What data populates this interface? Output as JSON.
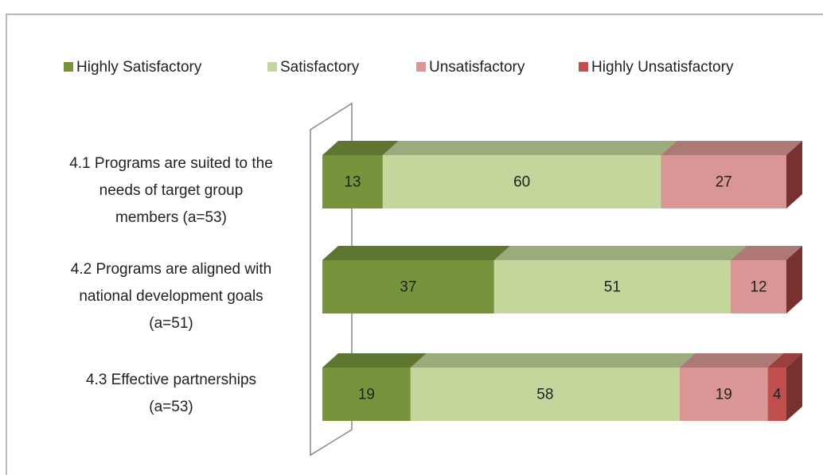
{
  "chart_data": {
    "type": "bar",
    "orientation": "horizontal",
    "stacked": true,
    "legend": "top",
    "categories": [
      "4.1 Programs are suited to the\nneeds of target group\nmembers (a=53)",
      "4.2 Programs are aligned with\nnational development goals\n(a=51)",
      "4.3 Effective partnerships\n(a=53)"
    ],
    "series": [
      {
        "name": "Highly Satisfactory",
        "color": "#77933c",
        "values": [
          13,
          37,
          19
        ]
      },
      {
        "name": "Satisfactory",
        "color": "#c3d69b",
        "values": [
          60,
          51,
          58
        ]
      },
      {
        "name": "Unsatisfactory",
        "color": "#d99694",
        "values": [
          27,
          12,
          19
        ]
      },
      {
        "name": "Highly Unsatisfactory",
        "color": "#c0504d",
        "values": [
          0,
          0,
          4
        ]
      }
    ]
  }
}
